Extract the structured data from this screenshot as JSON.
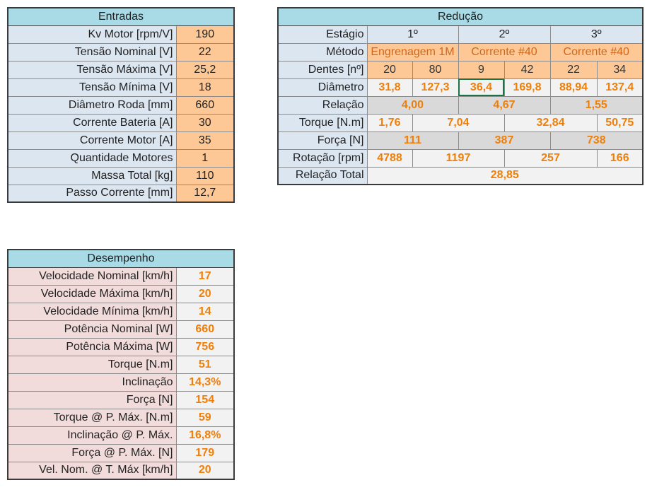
{
  "entradas": {
    "title": "Entradas",
    "rows": [
      {
        "label": "Kv Motor [rpm/V]",
        "value": "190"
      },
      {
        "label": "Tensão Nominal [V]",
        "value": "22"
      },
      {
        "label": "Tensão Máxima [V]",
        "value": "25,2"
      },
      {
        "label": "Tensão Mínima [V]",
        "value": "18"
      },
      {
        "label": "Diâmetro Roda [mm]",
        "value": "660"
      },
      {
        "label": "Corrente Bateria [A]",
        "value": "30"
      },
      {
        "label": "Corrente Motor [A]",
        "value": "35"
      },
      {
        "label": "Quantidade Motores",
        "value": "1"
      },
      {
        "label": "Massa Total [kg]",
        "value": "110"
      },
      {
        "label": "Passo Corrente [mm]",
        "value": "12,7"
      }
    ]
  },
  "reducao": {
    "title": "Redução",
    "estagio_label": "Estágio",
    "estagios": [
      "1º",
      "2º",
      "3º"
    ],
    "metodo_label": "Método",
    "metodos": [
      "Engrenagem 1M",
      "Corrente #40",
      "Corrente #40"
    ],
    "dentes_label": "Dentes  [nº]",
    "dentes": [
      "20",
      "80",
      "9",
      "42",
      "22",
      "34"
    ],
    "diametro_label": "Diâmetro",
    "diametros": [
      "31,8",
      "127,3",
      "36,4",
      "169,8",
      "88,94",
      "137,4"
    ],
    "relacao_label": "Relação",
    "relacoes": [
      "4,00",
      "4,67",
      "1,55"
    ],
    "torque_label": "Torque [N.m]",
    "torques": [
      "1,76",
      "7,04",
      "32,84",
      "50,75"
    ],
    "forca_label": "Força [N]",
    "forcas": [
      "111",
      "387",
      "738"
    ],
    "rotacao_label": "Rotação [rpm]",
    "rotacoes": [
      "4788",
      "1197",
      "257",
      "166"
    ],
    "relacao_total_label": "Relação Total",
    "relacao_total": "28,85"
  },
  "desempenho": {
    "title": "Desempenho",
    "rows": [
      {
        "label": "Velocidade Nominal [km/h]",
        "value": "17"
      },
      {
        "label": "Velocidade Máxima [km/h]",
        "value": "20"
      },
      {
        "label": "Velocidade Mínima [km/h]",
        "value": "14"
      },
      {
        "label": "Potência Nominal [W]",
        "value": "660"
      },
      {
        "label": "Potência Máxima [W]",
        "value": "756"
      },
      {
        "label": "Torque [N.m]",
        "value": "51"
      },
      {
        "label": "Inclinação",
        "value": "14,3%"
      },
      {
        "label": "Força [N]",
        "value": "154"
      },
      {
        "label": "Torque @ P. Máx. [N.m]",
        "value": "59"
      },
      {
        "label": "Inclinação @ P. Máx.",
        "value": "16,8%"
      },
      {
        "label": "Força @ P. Máx. [N]",
        "value": "179"
      },
      {
        "label": "Vel. Nom. @ T. Máx [km/h]",
        "value": "20"
      }
    ]
  }
}
